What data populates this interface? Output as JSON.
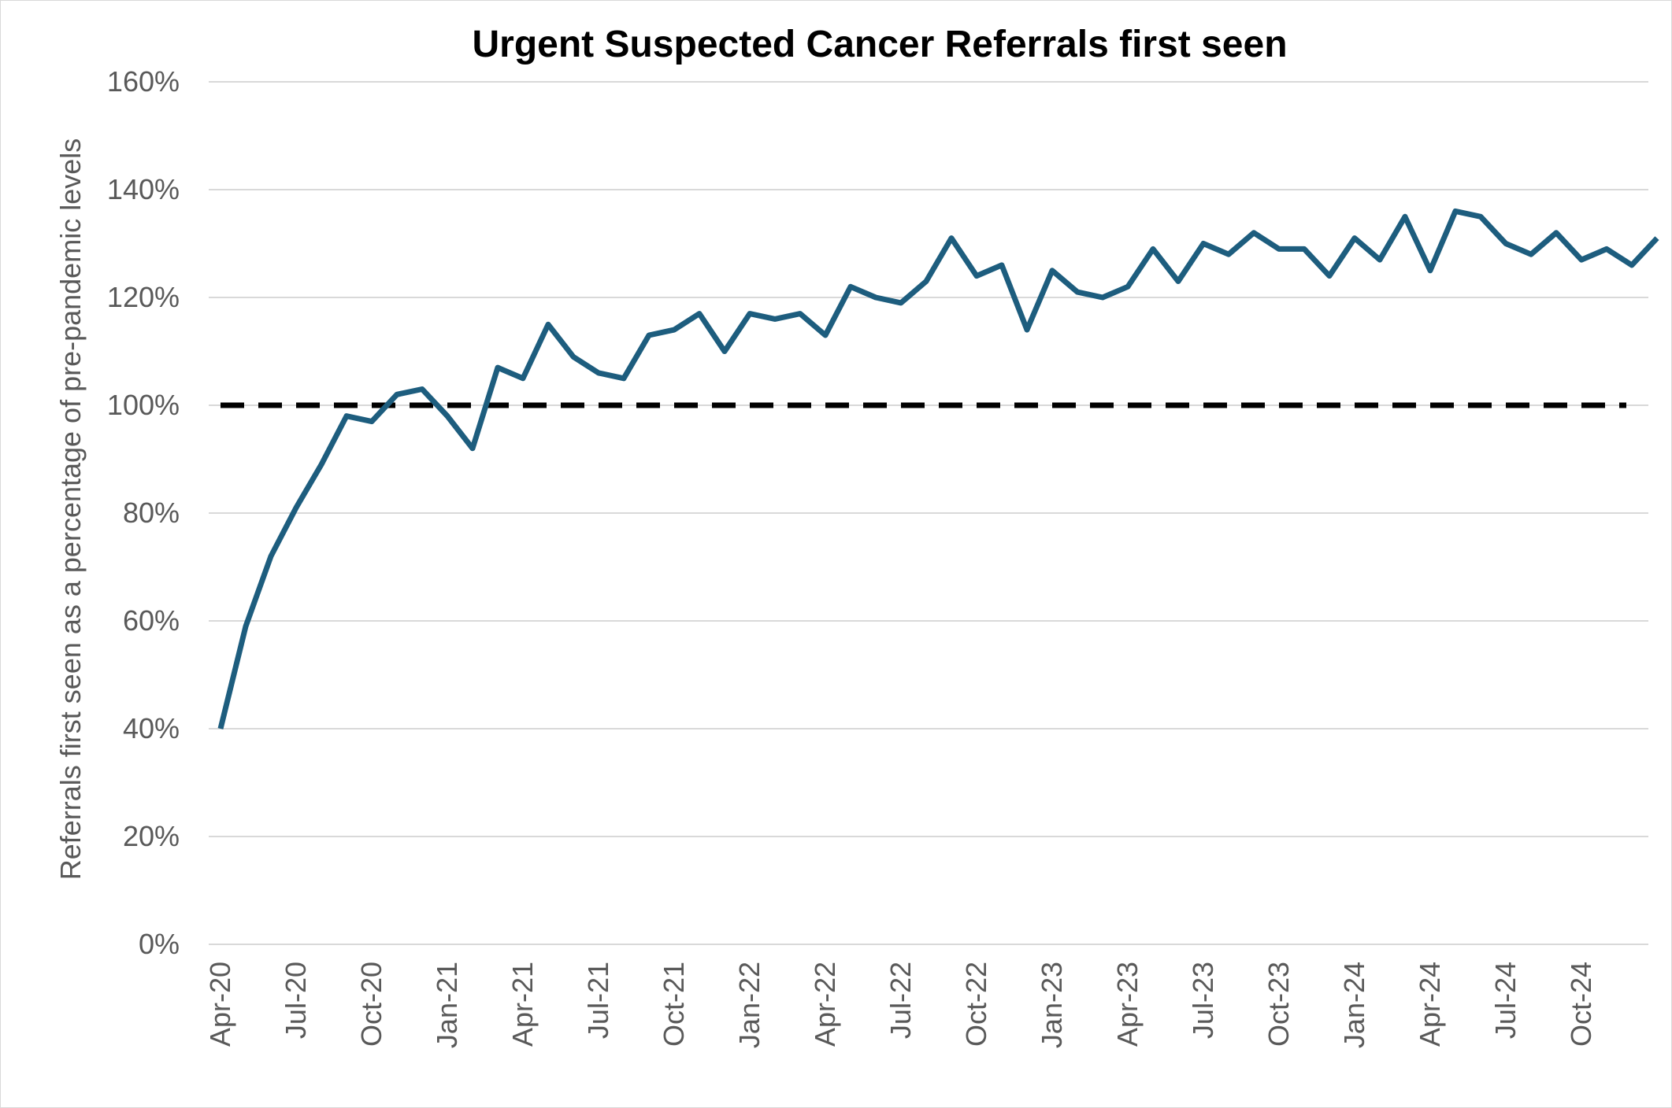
{
  "chart_data": {
    "type": "line",
    "title": "Urgent Suspected Cancer Referrals first seen",
    "xlabel": "",
    "ylabel": "Referrals first seen as a percentage of pre-pandemic levels",
    "ylim": [
      0,
      1.6
    ],
    "y_ticks": [
      "0%",
      "20%",
      "40%",
      "60%",
      "80%",
      "100%",
      "120%",
      "140%",
      "160%"
    ],
    "x_tick_labels": [
      "Apr-20",
      "Jul-20",
      "Oct-20",
      "Jan-21",
      "Apr-21",
      "Jul-21",
      "Oct-21",
      "Jan-22",
      "Apr-22",
      "Jul-22",
      "Oct-22",
      "Jan-23",
      "Apr-23",
      "Jul-23",
      "Oct-23",
      "Jan-24",
      "Apr-24",
      "Jul-24",
      "Oct-24"
    ],
    "grid": "horizontal",
    "legend": "none",
    "reference_line": {
      "y": 1.0,
      "style": "dashed",
      "color": "#000000"
    },
    "line_color": "#1d5d7e",
    "categories": [
      "Apr-20",
      "May-20",
      "Jun-20",
      "Jul-20",
      "Aug-20",
      "Sep-20",
      "Oct-20",
      "Nov-20",
      "Dec-20",
      "Jan-21",
      "Feb-21",
      "Mar-21",
      "Apr-21",
      "May-21",
      "Jun-21",
      "Jul-21",
      "Aug-21",
      "Sep-21",
      "Oct-21",
      "Nov-21",
      "Dec-21",
      "Jan-22",
      "Feb-22",
      "Mar-22",
      "Apr-22",
      "May-22",
      "Jun-22",
      "Jul-22",
      "Aug-22",
      "Sep-22",
      "Oct-22",
      "Nov-22",
      "Dec-22",
      "Jan-23",
      "Feb-23",
      "Mar-23",
      "Apr-23",
      "May-23",
      "Jun-23",
      "Jul-23",
      "Aug-23",
      "Sep-23",
      "Oct-23",
      "Nov-23",
      "Dec-23",
      "Jan-24",
      "Feb-24",
      "Mar-24",
      "Apr-24",
      "May-24",
      "Jun-24",
      "Jul-24",
      "Aug-24",
      "Sep-24",
      "Oct-24",
      "Nov-24",
      "Dec-24",
      "Jan-25"
    ],
    "values": [
      0.4,
      0.59,
      0.72,
      0.81,
      0.89,
      0.98,
      0.97,
      1.02,
      1.03,
      0.98,
      0.92,
      1.07,
      1.05,
      1.15,
      1.09,
      1.06,
      1.05,
      1.13,
      1.14,
      1.17,
      1.1,
      1.17,
      1.16,
      1.17,
      1.13,
      1.22,
      1.2,
      1.19,
      1.23,
      1.31,
      1.24,
      1.26,
      1.14,
      1.25,
      1.21,
      1.2,
      1.22,
      1.29,
      1.23,
      1.3,
      1.28,
      1.32,
      1.29,
      1.29,
      1.24,
      1.31,
      1.27,
      1.35,
      1.25,
      1.36,
      1.35,
      1.3,
      1.28,
      1.32,
      1.27,
      1.29,
      1.26,
      1.31
    ]
  }
}
